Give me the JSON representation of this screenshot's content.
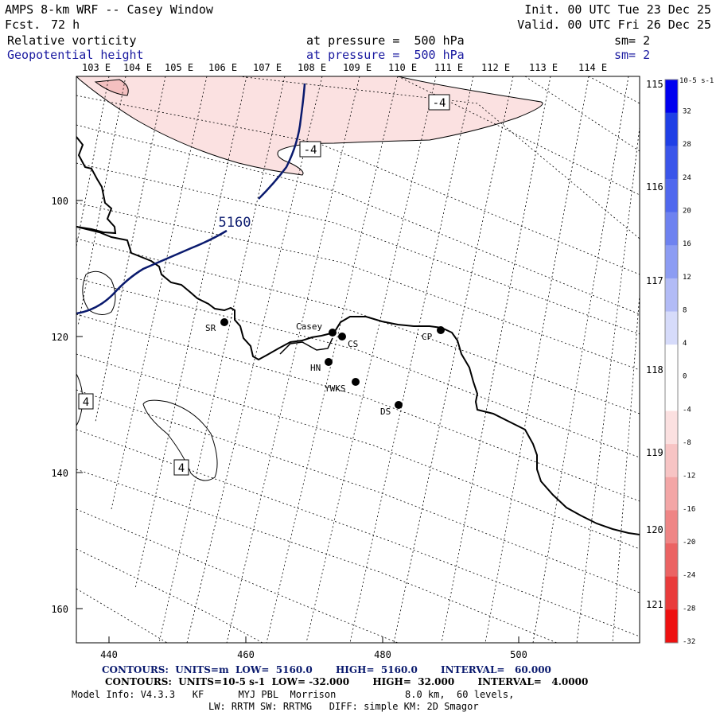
{
  "header": {
    "title": "AMPS 8-km WRF -- Casey Window",
    "forecast_label": "Fcst.",
    "forecast_hours": "72 h",
    "init": "Init. 00 UTC Tue 23 Dec 25",
    "valid": "Valid. 00 UTC Fri 26 Dec 25",
    "field1": "Relative vorticity",
    "field1_pressure": "at pressure =  500 hPa",
    "field1_sm": "sm= 2",
    "field2": "Geopotential height",
    "field2_pressure": "at pressure =  500 hPa",
    "field2_sm": "sm= 2"
  },
  "axes": {
    "top_longitudes": [
      "103 E",
      "104 E",
      "105 E",
      "106 E",
      "107 E",
      "108 E",
      "109 E",
      "110 E",
      "111 E",
      "112 E",
      "113 E",
      "114 E"
    ],
    "right_longitudes": [
      "115 E",
      "116 E",
      "117 E",
      "118 E",
      "119 E",
      "120 E",
      "121 E"
    ],
    "x_ticks": [
      "440",
      "460",
      "480",
      "500"
    ],
    "y_ticks": [
      "100",
      "120",
      "140",
      "160"
    ]
  },
  "contour_labels": {
    "height_5160": "5160",
    "vort_neg_a": "-4",
    "vort_neg_b": "-4",
    "vort_pos_a": "4",
    "vort_pos_b": "4"
  },
  "stations": [
    {
      "name": "SR"
    },
    {
      "name": "Casey"
    },
    {
      "name": "CS"
    },
    {
      "name": "CP"
    },
    {
      "name": "HN"
    },
    {
      "name": "YWKS"
    },
    {
      "name": "DS"
    }
  ],
  "colorbar": {
    "unit_label": "10-5 s-1",
    "labels": [
      "32",
      "28",
      "24",
      "20",
      "16",
      "12",
      "8",
      "4",
      "0",
      "-4",
      "-8",
      "-12",
      "-16",
      "-20",
      "-24",
      "-28",
      "-32"
    ],
    "colors": [
      "#0000f0",
      "#1f3fe6",
      "#3a55ea",
      "#5068ee",
      "#6e82f0",
      "#8c9cf3",
      "#b2bbf6",
      "#d6dbfa",
      "#ffffff",
      "#ffffff",
      "#fbe0e0",
      "#f7c4c4",
      "#f3a6a6",
      "#ef8585",
      "#eb6363",
      "#e93b3b",
      "#ee1010"
    ]
  },
  "footer": {
    "contours_height": "CONTOURS:  UNITS=m  LOW=  5160.0       HIGH=  5160.0       INTERVAL=   60.000",
    "contours_vort": "CONTOURS:  UNITS=10-5 s-1  LOW= -32.000       HIGH=  32.000       INTERVAL=   4.0000",
    "model_info_1": "Model Info: V4.3.3   KF      MYJ PBL  Morrison            8.0 km,  60 levels,",
    "model_info_2": "LW: RRTM SW: RRTMG   DIFF: simple KM: 2D Smagor"
  }
}
